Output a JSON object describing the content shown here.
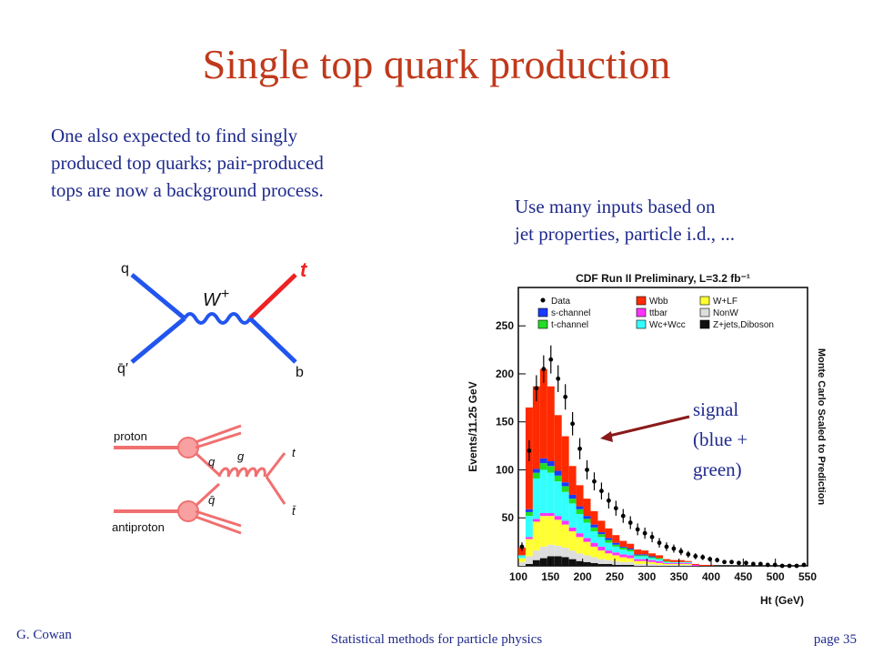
{
  "slide": {
    "title": "Single top quark production",
    "intro_lines": [
      "One also expected to find singly",
      "produced top quarks; pair-produced",
      "tops are now a background process."
    ],
    "inputs_lines": [
      "Use many inputs based on",
      "jet properties, particle i.d., ..."
    ],
    "signal_note": [
      "signal",
      "(blue +",
      "green)"
    ],
    "footer": {
      "author": "G. Cowan",
      "title": "Statistical methods for particle physics",
      "page": "page 35"
    }
  },
  "feynman_schannel": {
    "labels": {
      "q": "q",
      "qbar": "q̄′",
      "w": "W",
      "plus": "+",
      "t": "t",
      "b": "b"
    }
  },
  "feynman_tchannel": {
    "labels": {
      "proton": "proton",
      "antiproton": "antiproton",
      "q": "q",
      "qbar": "q̄",
      "g": "g",
      "t": "t",
      "tbar": "t̄"
    }
  },
  "chart_data": {
    "type": "bar",
    "title": "CDF Run II Preliminary, L=3.2 fb⁻¹",
    "xlabel": "Ht (GeV)",
    "ylabel": "Events/11.25 GeV",
    "right_label": "Monte Carlo Scaled to Prediction",
    "xlim": [
      100,
      550
    ],
    "ylim": [
      0,
      290
    ],
    "xticks": [
      "100",
      "150",
      "200",
      "250",
      "300",
      "350",
      "400",
      "450",
      "500",
      "550"
    ],
    "yticks": [
      "50",
      "100",
      "150",
      "200",
      "250"
    ],
    "legend": [
      {
        "name": "Data",
        "color": "#000000",
        "marker": "point"
      },
      {
        "name": "Wbb",
        "color": "#ff2a00"
      },
      {
        "name": "W+LF",
        "color": "#ffff33"
      },
      {
        "name": "s-channel",
        "color": "#1a3bff"
      },
      {
        "name": "ttbar",
        "color": "#ff33ff"
      },
      {
        "name": "NonW",
        "color": "#dddddd"
      },
      {
        "name": "t-channel",
        "color": "#22dd22"
      },
      {
        "name": "Wc+Wcc",
        "color": "#33ffff"
      },
      {
        "name": "Z+jets,Diboson",
        "color": "#111111"
      }
    ],
    "bin_start": 100,
    "bin_width": 11.25,
    "series": [
      {
        "name": "Z+jets,Diboson",
        "color": "#111111",
        "values": [
          0,
          2,
          6,
          8,
          10,
          10,
          9,
          7,
          5,
          4,
          3,
          2,
          2,
          1,
          1,
          1,
          0,
          0,
          0,
          0,
          0,
          0,
          0,
          0,
          0,
          0,
          0,
          0,
          0,
          0,
          0,
          0,
          0,
          0,
          0,
          0,
          0,
          0,
          0,
          0
        ]
      },
      {
        "name": "NonW",
        "color": "#dddddd",
        "values": [
          4,
          8,
          10,
          12,
          12,
          11,
          10,
          9,
          8,
          7,
          6,
          5,
          4,
          4,
          3,
          3,
          2,
          2,
          2,
          1,
          1,
          1,
          1,
          1,
          0,
          0,
          0,
          0,
          0,
          0,
          0,
          0,
          0,
          0,
          0,
          0,
          0,
          0,
          0,
          0
        ]
      },
      {
        "name": "W+LF",
        "color": "#ffff33",
        "values": [
          4,
          18,
          30,
          32,
          30,
          27,
          24,
          20,
          17,
          14,
          11,
          9,
          7,
          6,
          5,
          4,
          3,
          3,
          2,
          2,
          1,
          1,
          1,
          1,
          0,
          0,
          0,
          0,
          0,
          0,
          0,
          0,
          0,
          0,
          0,
          0,
          0,
          0,
          0,
          0
        ]
      },
      {
        "name": "ttbar",
        "color": "#ff33ff",
        "values": [
          0,
          2,
          3,
          3,
          3,
          4,
          4,
          4,
          4,
          4,
          4,
          4,
          3,
          3,
          3,
          3,
          2,
          2,
          2,
          2,
          1,
          1,
          1,
          1,
          1,
          0,
          0,
          0,
          0,
          0,
          0,
          0,
          0,
          0,
          0,
          0,
          0,
          0,
          0,
          0
        ]
      },
      {
        "name": "Wc+Wcc",
        "color": "#33ffff",
        "values": [
          3,
          22,
          42,
          45,
          42,
          36,
          30,
          25,
          20,
          16,
          12,
          10,
          8,
          6,
          5,
          4,
          3,
          3,
          2,
          2,
          1,
          1,
          1,
          1,
          0,
          0,
          0,
          0,
          0,
          0,
          0,
          0,
          0,
          0,
          0,
          0,
          0,
          0,
          0,
          0
        ]
      },
      {
        "name": "t-channel",
        "color": "#22dd22",
        "values": [
          0,
          4,
          6,
          7,
          7,
          6,
          6,
          5,
          5,
          4,
          4,
          3,
          3,
          2,
          2,
          2,
          1,
          1,
          1,
          1,
          1,
          0,
          0,
          0,
          0,
          0,
          0,
          0,
          0,
          0,
          0,
          0,
          0,
          0,
          0,
          0,
          0,
          0,
          0,
          0
        ]
      },
      {
        "name": "s-channel",
        "color": "#1a3bff",
        "values": [
          0,
          3,
          4,
          5,
          5,
          5,
          4,
          4,
          3,
          3,
          3,
          2,
          2,
          2,
          1,
          1,
          1,
          1,
          1,
          0,
          0,
          0,
          0,
          0,
          0,
          0,
          0,
          0,
          0,
          0,
          0,
          0,
          0,
          0,
          0,
          0,
          0,
          0,
          0,
          0
        ]
      },
      {
        "name": "Wbb",
        "color": "#ff2a00",
        "values": [
          8,
          106,
          86,
          93,
          78,
          58,
          48,
          30,
          22,
          18,
          14,
          12,
          10,
          8,
          6,
          5,
          5,
          4,
          3,
          3,
          2,
          2,
          2,
          1,
          1,
          1,
          1,
          0,
          0,
          0,
          0,
          0,
          0,
          0,
          0,
          0,
          0,
          0,
          0,
          0
        ]
      }
    ],
    "data_points": [
      20,
      120,
      185,
      205,
      215,
      195,
      176,
      148,
      122,
      100,
      88,
      78,
      68,
      60,
      52,
      45,
      38,
      34,
      30,
      24,
      20,
      18,
      15,
      12,
      10,
      9,
      7,
      6,
      4,
      4,
      3,
      3,
      2,
      2,
      1,
      1,
      0,
      0,
      0,
      1
    ],
    "annotation": "signal (blue + green)"
  }
}
